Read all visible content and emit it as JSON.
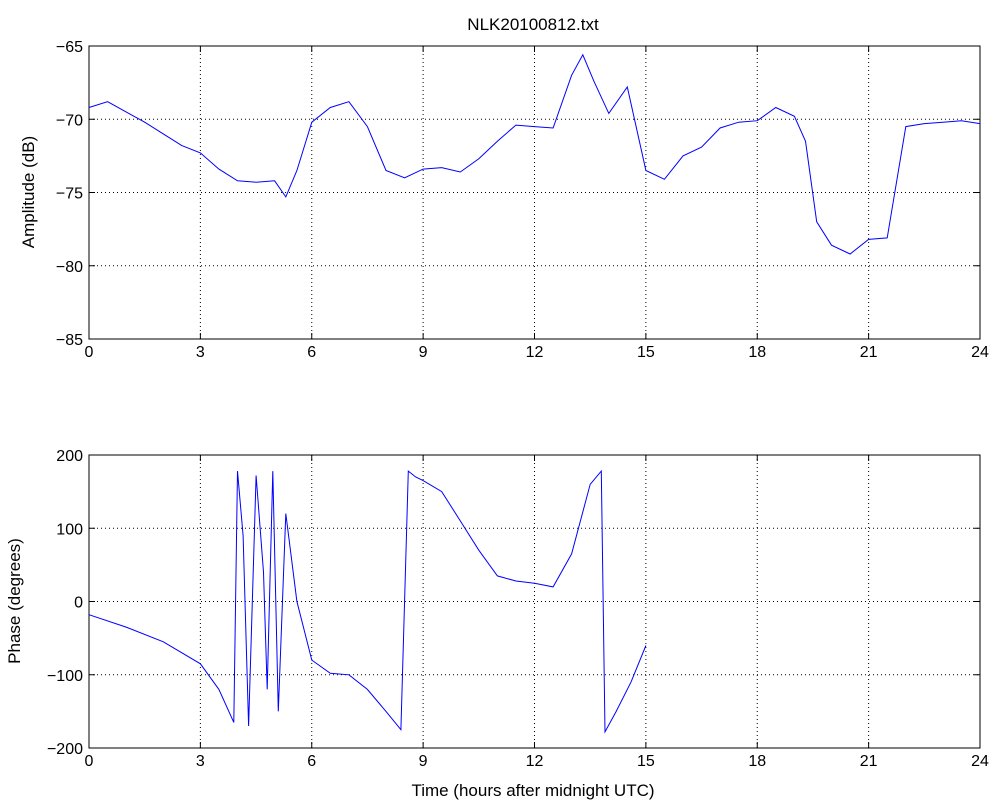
{
  "figure": {
    "title": "NLK20100812.txt",
    "line_color": "#0000ff"
  },
  "chart_data": [
    {
      "type": "line",
      "title": "NLK20100812.txt",
      "xlabel": "",
      "ylabel": "Amplitude (dB)",
      "xlim": [
        0,
        24
      ],
      "ylim": [
        -85,
        -65
      ],
      "xticks": [
        0,
        3,
        6,
        9,
        12,
        15,
        18,
        21,
        24
      ],
      "xtick_labels": [
        "0",
        "3",
        "6",
        "9",
        "12",
        "15",
        "18",
        "21",
        "24"
      ],
      "yticks": [
        -85,
        -80,
        -75,
        -70,
        -65
      ],
      "ytick_labels": [
        "−85",
        "−80",
        "−75",
        "−70",
        "−65"
      ],
      "grid": true,
      "series": [
        {
          "color": "#0000ff",
          "x": [
            0,
            0.5,
            1,
            1.5,
            2,
            2.5,
            3,
            3.5,
            4,
            4.5,
            5,
            5.3,
            5.6,
            6,
            6.5,
            7,
            7.5,
            8,
            8.5,
            9,
            9.5,
            10,
            10.5,
            11,
            11.5,
            12,
            12.5,
            13,
            13.3,
            13.6,
            14,
            14.5,
            15,
            15.5,
            16,
            16.5,
            17,
            17.5,
            18,
            18.5,
            19,
            19.3,
            19.6,
            20,
            20.5,
            21,
            21.5,
            22,
            22.5,
            23,
            23.5,
            24
          ],
          "y": [
            -69.2,
            -68.8,
            -69.5,
            -70.2,
            -71,
            -71.8,
            -72.3,
            -73.4,
            -74.2,
            -74.3,
            -74.2,
            -75.3,
            -73.5,
            -70.2,
            -69.2,
            -68.8,
            -70.5,
            -73.5,
            -74,
            -73.4,
            -73.3,
            -73.6,
            -72.7,
            -71.5,
            -70.4,
            -70.5,
            -70.6,
            -67,
            -65.6,
            -67.4,
            -69.6,
            -67.8,
            -73.5,
            -74.1,
            -72.5,
            -71.9,
            -70.6,
            -70.2,
            -70.1,
            -69.2,
            -69.8,
            -71.5,
            -77,
            -78.6,
            -79.2,
            -78.2,
            -78.1,
            -70.5,
            -70.3,
            -70.2,
            -70.1,
            -70.3
          ]
        }
      ]
    },
    {
      "type": "line",
      "title": "",
      "xlabel": "Time (hours after midnight UTC)",
      "ylabel": "Phase (degrees)",
      "xlim": [
        0,
        24
      ],
      "ylim": [
        -200,
        200
      ],
      "xticks": [
        0,
        3,
        6,
        9,
        12,
        15,
        18,
        21,
        24
      ],
      "xtick_labels": [
        "0",
        "3",
        "6",
        "9",
        "12",
        "15",
        "18",
        "21",
        "24"
      ],
      "yticks": [
        -200,
        -100,
        0,
        100,
        200
      ],
      "ytick_labels": [
        "−200",
        "−100",
        "0",
        "100",
        "200"
      ],
      "grid": true,
      "series": [
        {
          "color": "#0000ff",
          "x": [
            0,
            1,
            2,
            3,
            3.5,
            3.9,
            4.0,
            4.15,
            4.3,
            4.5,
            4.7,
            4.8,
            4.95,
            5.1,
            5.3,
            5.6,
            6,
            6.5,
            7,
            7.5,
            8,
            8.4,
            8.6,
            8.8,
            9,
            9.5,
            10,
            10.5,
            11,
            11.5,
            12,
            12.5,
            13,
            13.5,
            13.8,
            13.9,
            14.2,
            14.6,
            15
          ],
          "y": [
            -18,
            -35,
            -55,
            -85,
            -120,
            -165,
            178,
            90,
            -170,
            172,
            40,
            -120,
            178,
            -150,
            120,
            0,
            -80,
            -98,
            -100,
            -120,
            -150,
            -175,
            178,
            170,
            165,
            150,
            110,
            70,
            35,
            28,
            25,
            20,
            65,
            160,
            178,
            -178,
            -150,
            -110,
            -60
          ]
        }
      ],
      "annotations": []
    }
  ]
}
